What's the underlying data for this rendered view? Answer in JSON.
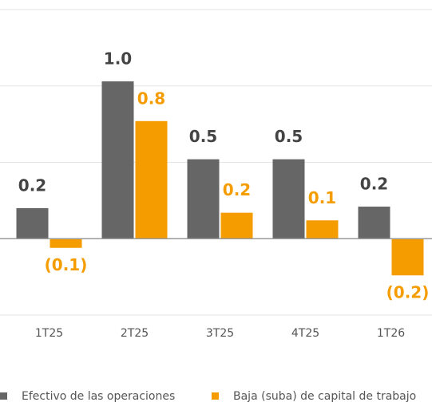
{
  "chart_data": {
    "type": "bar",
    "categories": [
      "1T25",
      "2T25",
      "3T25",
      "4T25",
      "1T26"
    ],
    "series": [
      {
        "name": "Efectivo de las operaciones",
        "color": "#666666",
        "values": [
          0.2,
          1.03,
          0.52,
          0.52,
          0.21
        ],
        "value_labels": [
          "0.2",
          "1.0",
          "0.5",
          "0.5",
          "0.2"
        ]
      },
      {
        "name": "Baja (suba) de capital de trabajo",
        "color": "#f59c00",
        "values": [
          -0.06,
          0.77,
          0.17,
          0.12,
          -0.24
        ],
        "value_labels": [
          "(0.1)",
          "0.8",
          "0.2",
          "0.1",
          "(0.2)"
        ]
      }
    ],
    "ylim": [
      -0.5,
      1.5
    ],
    "yticks": [
      -0.5,
      0,
      0.5,
      1,
      1.5
    ],
    "grid": true
  }
}
